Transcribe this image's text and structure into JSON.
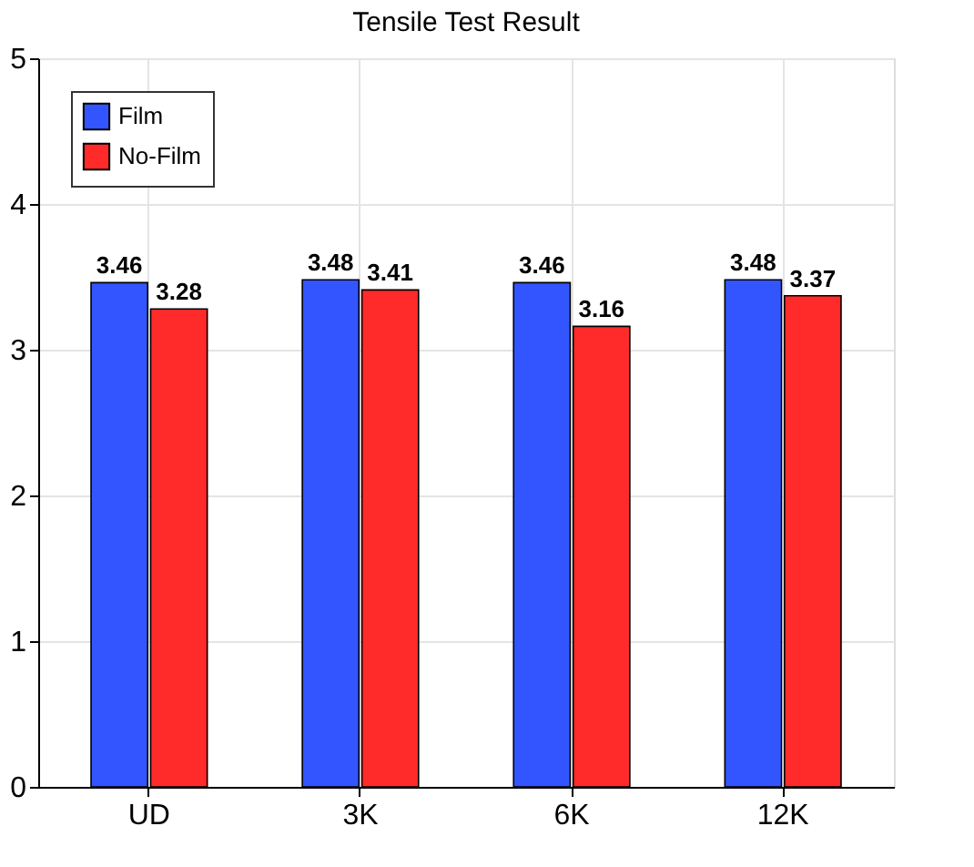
{
  "chart_data": {
    "type": "bar",
    "title": "Tensile Test Result",
    "categories": [
      "UD",
      "3K",
      "6K",
      "12K"
    ],
    "series": [
      {
        "name": "Film",
        "color": "#3355ff",
        "values": [
          3.46,
          3.48,
          3.46,
          3.48
        ]
      },
      {
        "name": "No-Film",
        "color": "#ff2a2a",
        "values": [
          3.28,
          3.41,
          3.16,
          3.37
        ]
      }
    ],
    "ylim": [
      0,
      5
    ],
    "yticks": [
      0,
      1,
      2,
      3,
      4,
      5
    ],
    "grid": true,
    "legend": "top left",
    "data_labels": true
  }
}
